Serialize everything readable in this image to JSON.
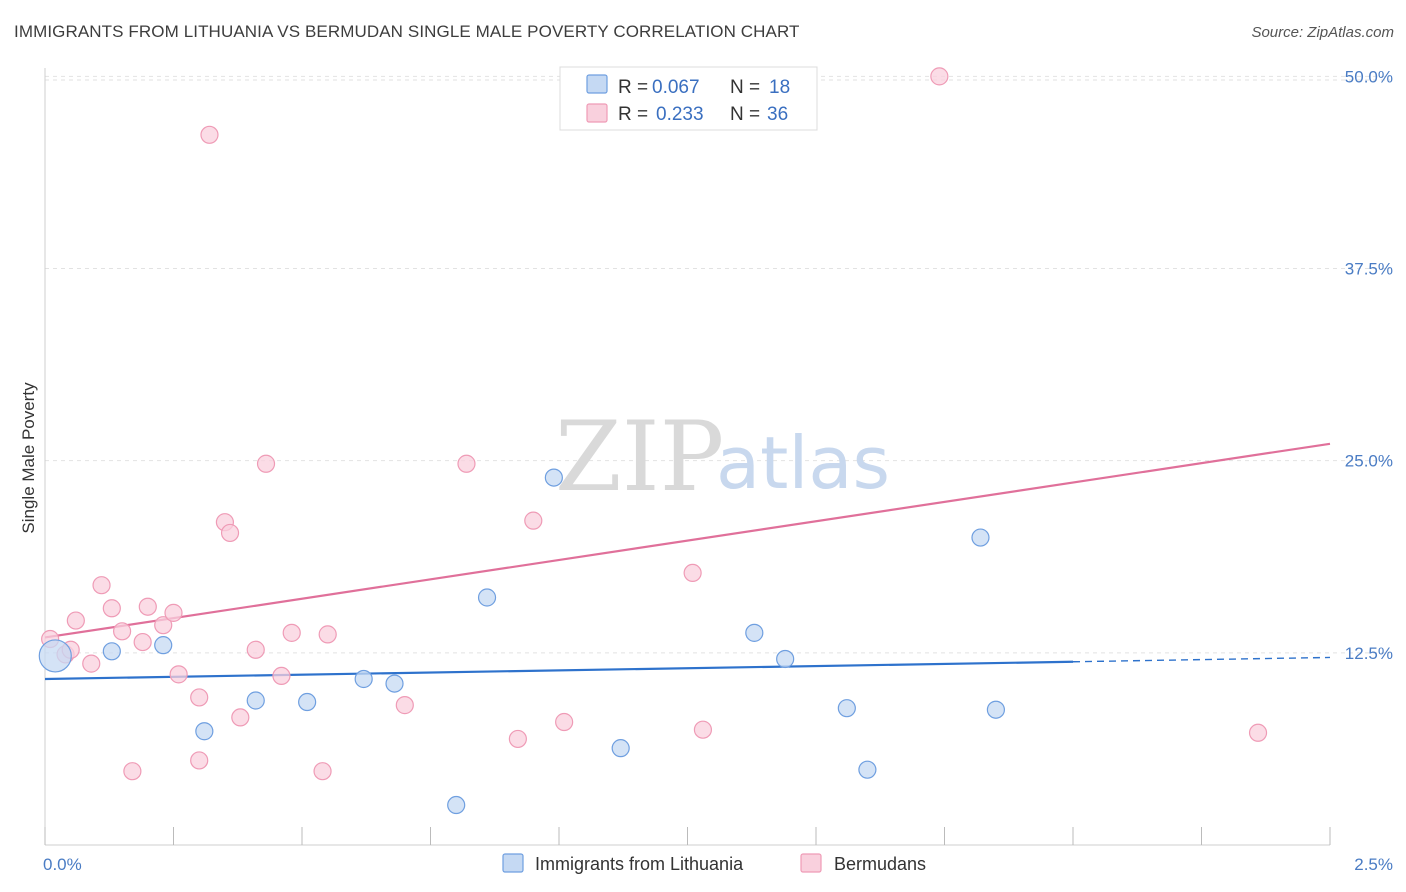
{
  "header": {
    "title": "IMMIGRANTS FROM LITHUANIA VS BERMUDAN SINGLE MALE POVERTY CORRELATION CHART",
    "source": "Source: ZipAtlas.com"
  },
  "watermark": {
    "part1": "ZIP",
    "part2": "atlas"
  },
  "chart_data": {
    "type": "scatter",
    "title": "IMMIGRANTS FROM LITHUANIA VS BERMUDAN SINGLE MALE POVERTY CORRELATION CHART",
    "xlabel": "",
    "ylabel": "Single Male Poverty",
    "xlim": [
      0,
      2.5
    ],
    "ylim": [
      0,
      51
    ],
    "x_tick_labels": [
      {
        "value": 0,
        "label": "0.0%"
      },
      {
        "value": 2.5,
        "label": "2.5%"
      }
    ],
    "y_ticks": [
      {
        "value": 12.5,
        "label": "12.5%"
      },
      {
        "value": 25.0,
        "label": "25.0%"
      },
      {
        "value": 37.5,
        "label": "37.5%"
      },
      {
        "value": 50.0,
        "label": "50.0%"
      }
    ],
    "grid": true,
    "legend_placement": "top-center",
    "series": [
      {
        "name": "Immigrants from Lithuania",
        "R": "0.067",
        "N": "18",
        "color": "#6f9fe0",
        "fill": "#c5d9f3",
        "line_color": "#2e72cc",
        "trend": {
          "x0": 0,
          "y0": 10.8,
          "x1": 2.5,
          "y1": 12.2,
          "solid_until": 2.0
        },
        "points": [
          {
            "x": 0.02,
            "y": 12.3,
            "big": true
          },
          {
            "x": 0.13,
            "y": 12.6
          },
          {
            "x": 0.23,
            "y": 13.0
          },
          {
            "x": 0.31,
            "y": 7.4
          },
          {
            "x": 0.41,
            "y": 9.4
          },
          {
            "x": 0.51,
            "y": 9.3
          },
          {
            "x": 0.62,
            "y": 10.8
          },
          {
            "x": 0.68,
            "y": 10.5
          },
          {
            "x": 0.8,
            "y": 2.6
          },
          {
            "x": 0.86,
            "y": 16.1
          },
          {
            "x": 0.99,
            "y": 23.9
          },
          {
            "x": 1.12,
            "y": 6.3
          },
          {
            "x": 1.38,
            "y": 13.8
          },
          {
            "x": 1.44,
            "y": 12.1
          },
          {
            "x": 1.56,
            "y": 8.9
          },
          {
            "x": 1.6,
            "y": 4.9
          },
          {
            "x": 1.82,
            "y": 20.0
          },
          {
            "x": 1.85,
            "y": 8.8
          }
        ]
      },
      {
        "name": "Bermudans",
        "R": "0.233",
        "N": "36",
        "color": "#ef9bb6",
        "fill": "#f9d0dd",
        "line_color": "#e0709a",
        "trend": {
          "x0": 0,
          "y0": 13.5,
          "x1": 2.5,
          "y1": 26.1
        },
        "points": [
          {
            "x": 0.01,
            "y": 13.4
          },
          {
            "x": 0.04,
            "y": 12.4
          },
          {
            "x": 0.06,
            "y": 14.6
          },
          {
            "x": 0.09,
            "y": 11.8
          },
          {
            "x": 0.11,
            "y": 16.9
          },
          {
            "x": 0.13,
            "y": 15.4
          },
          {
            "x": 0.15,
            "y": 13.9
          },
          {
            "x": 0.17,
            "y": 4.8
          },
          {
            "x": 0.19,
            "y": 13.2
          },
          {
            "x": 0.2,
            "y": 15.5
          },
          {
            "x": 0.23,
            "y": 14.3
          },
          {
            "x": 0.25,
            "y": 15.1
          },
          {
            "x": 0.26,
            "y": 11.1
          },
          {
            "x": 0.3,
            "y": 9.6
          },
          {
            "x": 0.3,
            "y": 5.5
          },
          {
            "x": 0.32,
            "y": 46.2
          },
          {
            "x": 0.35,
            "y": 21.0
          },
          {
            "x": 0.36,
            "y": 20.3
          },
          {
            "x": 0.38,
            "y": 8.3
          },
          {
            "x": 0.41,
            "y": 12.7
          },
          {
            "x": 0.43,
            "y": 24.8
          },
          {
            "x": 0.46,
            "y": 11.0
          },
          {
            "x": 0.48,
            "y": 13.8
          },
          {
            "x": 0.54,
            "y": 4.8
          },
          {
            "x": 0.55,
            "y": 13.7
          },
          {
            "x": 0.7,
            "y": 9.1
          },
          {
            "x": 0.82,
            "y": 24.8
          },
          {
            "x": 0.92,
            "y": 6.9
          },
          {
            "x": 0.95,
            "y": 21.1
          },
          {
            "x": 1.01,
            "y": 8.0
          },
          {
            "x": 1.05,
            "y": 50.0
          },
          {
            "x": 1.26,
            "y": 17.7
          },
          {
            "x": 1.28,
            "y": 7.5
          },
          {
            "x": 1.74,
            "y": 50.0
          },
          {
            "x": 2.36,
            "y": 7.3
          },
          {
            "x": 0.05,
            "y": 12.7
          }
        ]
      }
    ]
  }
}
